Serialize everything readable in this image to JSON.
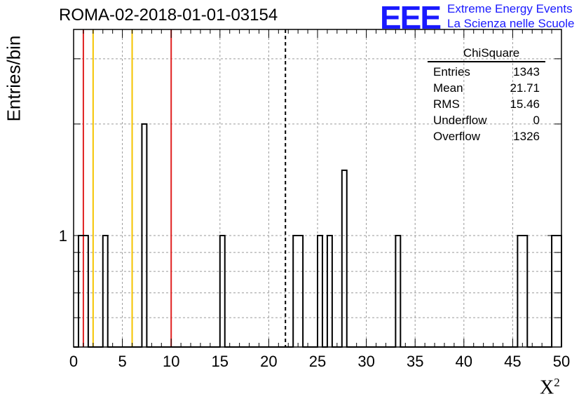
{
  "header": {
    "title": "ROMA-02-2018-01-01-03154",
    "logo_letters": "EEE",
    "logo_line1": "Extreme Energy Events",
    "logo_line2": "La Scienza nelle Scuole"
  },
  "stats": {
    "title": "ChiSquare",
    "rows": [
      {
        "label": "Entries",
        "value": "1343"
      },
      {
        "label": "Mean",
        "value": "21.71"
      },
      {
        "label": "RMS",
        "value": "15.46"
      },
      {
        "label": "Underflow",
        "value": "0"
      },
      {
        "label": "Overflow",
        "value": "1326"
      }
    ]
  },
  "chart_data": {
    "type": "bar",
    "xlabel": "X",
    "xlabel_sup": "2",
    "ylabel": "Entries/bin",
    "xlim": [
      0,
      50
    ],
    "x_ticks": [
      0,
      5,
      10,
      15,
      20,
      25,
      30,
      35,
      40,
      45,
      50
    ],
    "y_scale": "log",
    "ylim": [
      0.5,
      3.6
    ],
    "y_tick_labels": [
      {
        "value": 1,
        "label": "1"
      }
    ],
    "grid": true,
    "bin_width": 0.5,
    "bins": [
      {
        "x": 0.5,
        "count": 1
      },
      {
        "x": 1.0,
        "count": 1
      },
      {
        "x": 3.0,
        "count": 1
      },
      {
        "x": 7.0,
        "count": 2
      },
      {
        "x": 15.0,
        "count": 1
      },
      {
        "x": 22.5,
        "count": 1
      },
      {
        "x": 23.0,
        "count": 1
      },
      {
        "x": 25.0,
        "count": 1
      },
      {
        "x": 26.0,
        "count": 1
      },
      {
        "x": 27.5,
        "count": 1.5
      },
      {
        "x": 33.0,
        "count": 1
      },
      {
        "x": 45.5,
        "count": 1
      },
      {
        "x": 46.0,
        "count": 1
      },
      {
        "x": 49.0,
        "count": 1
      },
      {
        "x": 49.5,
        "count": 1
      }
    ],
    "reference_lines": [
      {
        "x": 1.0,
        "color": "#e02020",
        "style": "solid"
      },
      {
        "x": 2.0,
        "color": "#f5c400",
        "style": "solid"
      },
      {
        "x": 6.0,
        "color": "#f5c400",
        "style": "solid"
      },
      {
        "x": 10.0,
        "color": "#e02020",
        "style": "solid"
      },
      {
        "x": 21.71,
        "color": "#000000",
        "style": "dashed"
      }
    ]
  }
}
